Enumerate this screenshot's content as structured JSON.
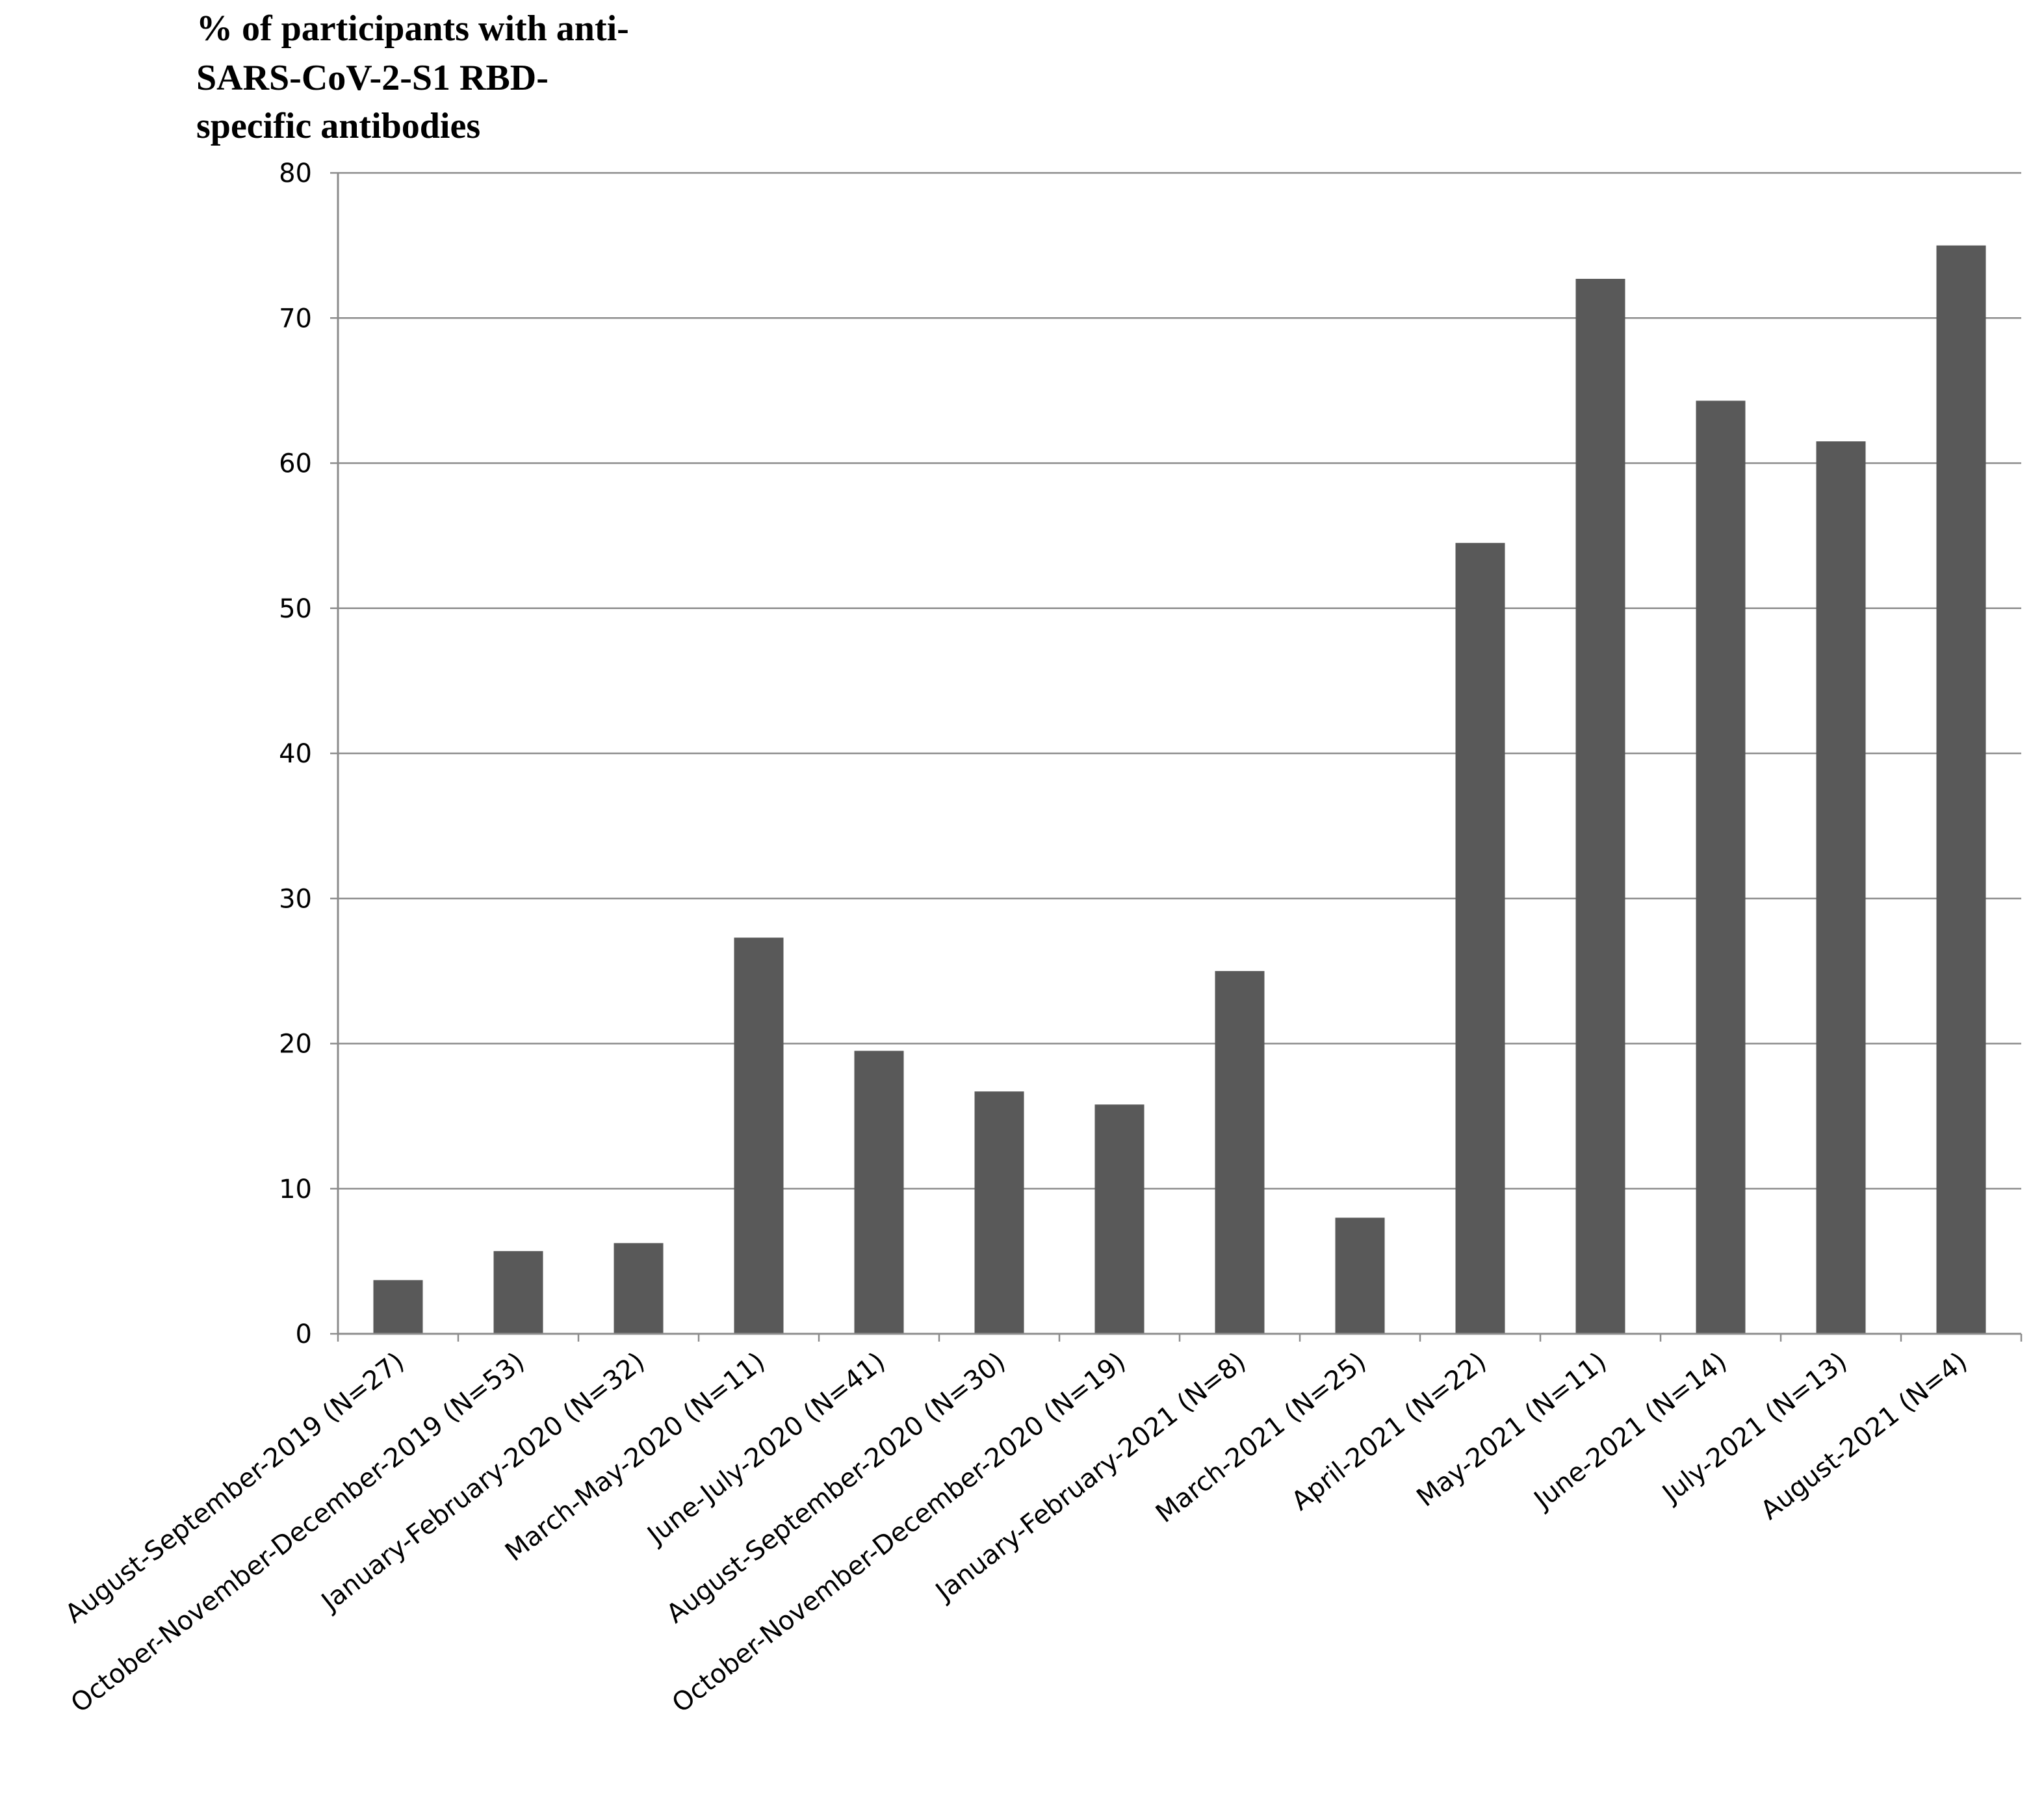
{
  "chart_data": {
    "type": "bar",
    "ylabel_lines": [
      "% of participants  with  anti-",
      "SARS-CoV-2-S1 RBD-",
      "specific  antibodies"
    ],
    "xlabel": "",
    "ylim": [
      0,
      80
    ],
    "yticks": [
      0,
      10,
      20,
      30,
      40,
      50,
      60,
      70,
      80
    ],
    "grid": true,
    "bar_color": "#595959",
    "grid_color": "#8c8c8c",
    "categories": [
      "August-September-2019 (N=27)",
      "October-November-December-2019 (N=53)",
      "January-February-2020 (N=32)",
      "March-May-2020 (N=11)",
      "June-July-2020 (N=41)",
      "August-September-2020 (N=30)",
      "October-November-December-2020 (N=19)",
      "January-February-2021 (N=8)",
      "March-2021 (N=25)",
      "April-2021 (N=22)",
      "May-2021 (N=11)",
      "June-2021 (N=14)",
      "July-2021 (N=13)",
      "August-2021 (N=4)"
    ],
    "values": [
      3.7,
      5.7,
      6.25,
      27.3,
      19.5,
      16.7,
      15.8,
      25.0,
      8.0,
      54.5,
      72.7,
      64.3,
      61.5,
      75.0
    ]
  }
}
